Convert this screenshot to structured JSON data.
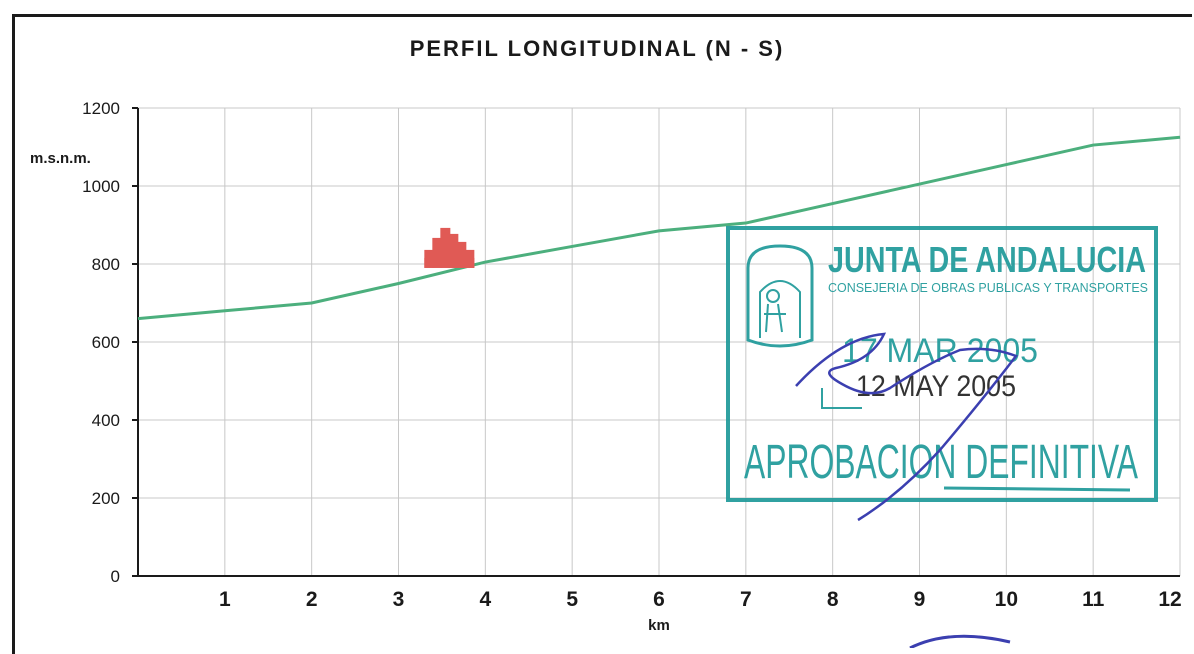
{
  "chart_data": {
    "type": "line",
    "title": "PERFIL LONGITUDINAL (N - S)",
    "xlabel": "km",
    "ylabel": "m.s.n.m.",
    "ylim": [
      0,
      1200
    ],
    "xlim": [
      0,
      12
    ],
    "yticks": [
      0,
      200,
      400,
      600,
      800,
      1000,
      1200
    ],
    "xticks": [
      1,
      2,
      3,
      4,
      5,
      6,
      7,
      8,
      9,
      10,
      11,
      12
    ],
    "grid": true,
    "series": [
      {
        "color": "#4caf7d",
        "x": [
          0,
          1,
          2,
          3,
          4,
          5,
          6,
          7,
          8,
          9,
          10,
          11,
          12
        ],
        "values": [
          660,
          680,
          700,
          750,
          805,
          845,
          885,
          905,
          955,
          1005,
          1055,
          1105,
          1125
        ]
      }
    ],
    "annotations": {
      "town_icon_color": "#e05a55",
      "stamp_color": "#1f9a9a",
      "signature_color": "#3b3fb0"
    }
  },
  "stamp": {
    "header": "JUNTA DE ANDALUCIA",
    "subheader": "CONSEJERIA DE OBRAS PUBLICAS Y TRANSPORTES",
    "date1": "17 MAR 2005",
    "date2": "12 MAY 2005",
    "footer": "APROBACION DEFINITIVA"
  }
}
